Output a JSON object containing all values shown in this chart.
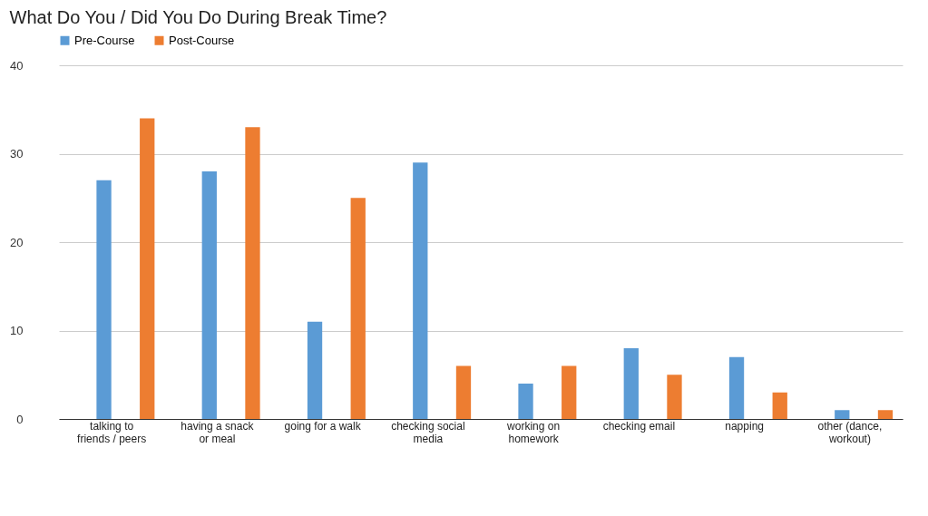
{
  "chart_data": {
    "type": "bar",
    "title": "What Do You / Did You Do During Break Time?",
    "categories": [
      "talking to\nfriends / peers",
      "having a snack\nor meal",
      "going for a walk",
      "checking social\nmedia",
      "working on\nhomework",
      "checking email",
      "napping",
      "other (dance,\nworkout)"
    ],
    "series": [
      {
        "name": "Pre-Course",
        "color": "#5b9bd5",
        "values": [
          27,
          28,
          11,
          29,
          4,
          8,
          7,
          1
        ]
      },
      {
        "name": "Post-Course",
        "color": "#ed7d31",
        "values": [
          34,
          33,
          25,
          6,
          6,
          5,
          3,
          1
        ]
      }
    ],
    "ylim": [
      0,
      40
    ],
    "yticks": [
      0,
      10,
      20,
      30,
      40
    ],
    "grid": "y",
    "legend": "top"
  }
}
